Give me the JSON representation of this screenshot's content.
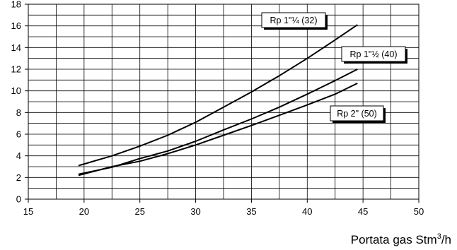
{
  "chart_data": {
    "type": "line",
    "title": "",
    "xlabel": "Portata gas Stm",
    "xlabel_superscript": "3",
    "xlabel_suffix": "/h",
    "ylabel": "",
    "xlim": [
      15,
      50
    ],
    "ylim": [
      0,
      18
    ],
    "x_ticks": [
      15,
      20,
      25,
      30,
      35,
      40,
      45,
      50
    ],
    "y_ticks": [
      0,
      2,
      4,
      6,
      8,
      10,
      12,
      14,
      16,
      18
    ],
    "x_tick_labels": [
      "15",
      "20",
      "25",
      "30",
      "35",
      "40",
      "45",
      "50"
    ],
    "y_tick_labels": [
      "0",
      "2",
      "4",
      "6",
      "8",
      "10",
      "12",
      "14",
      "16",
      "18"
    ],
    "grid": true,
    "grid_x_step": 2.5,
    "grid_y_step": 1,
    "line_color": "#000000",
    "series": [
      {
        "name": "Rp 1\"¼ (32)",
        "x": [
          19.5,
          22.5,
          25,
          27.5,
          30,
          32.5,
          35,
          37.5,
          40,
          42.5,
          44.5
        ],
        "y": [
          3.1,
          4.0,
          4.9,
          5.9,
          7.1,
          8.5,
          9.9,
          11.4,
          13.0,
          14.7,
          16.1
        ]
      },
      {
        "name": "Rp 1\"½ (40)",
        "x": [
          19.5,
          22.5,
          25,
          27.5,
          30,
          32.5,
          35,
          37.5,
          40,
          42.5,
          44.5
        ],
        "y": [
          2.3,
          2.95,
          3.75,
          4.45,
          5.35,
          6.4,
          7.4,
          8.5,
          9.7,
          10.95,
          12.0
        ]
      },
      {
        "name": "Rp 2\" (50)",
        "x": [
          19.5,
          22.5,
          25,
          27.5,
          30,
          32.5,
          35,
          37.5,
          40,
          42.5,
          44.5
        ],
        "y": [
          2.2,
          3.0,
          3.5,
          4.2,
          5.0,
          5.9,
          6.8,
          7.75,
          8.7,
          9.7,
          10.7
        ]
      }
    ]
  }
}
